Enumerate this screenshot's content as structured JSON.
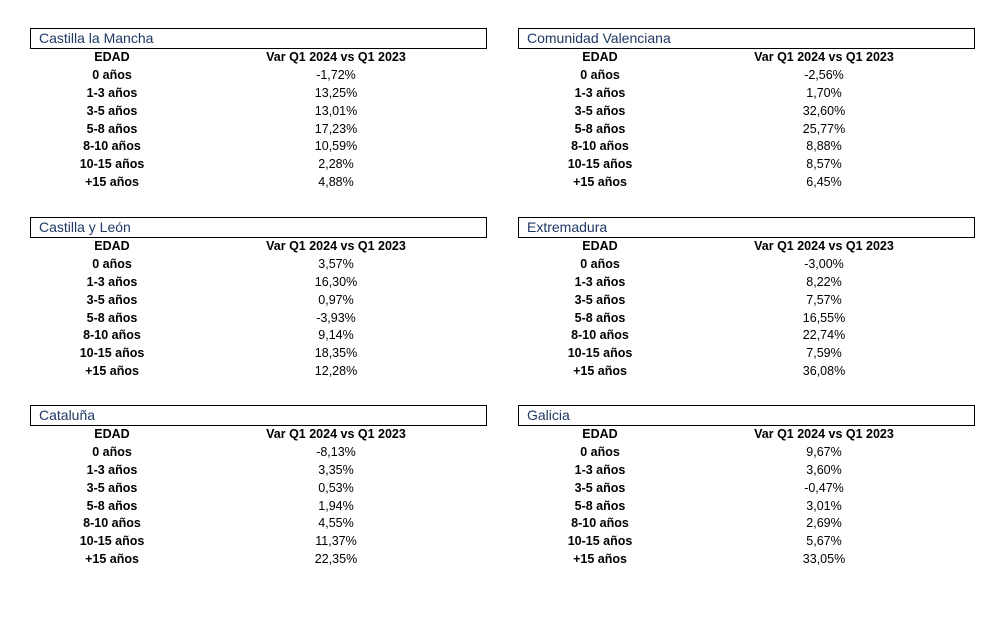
{
  "tables": [
    {
      "region": "Castilla la Mancha",
      "col_age": "EDAD",
      "col_var": "Var Q1 2024 vs Q1 2023",
      "rows": [
        {
          "age": "0 años",
          "value": "-1,72%"
        },
        {
          "age": "1-3 años",
          "value": "13,25%"
        },
        {
          "age": "3-5 años",
          "value": "13,01%"
        },
        {
          "age": "5-8 años",
          "value": "17,23%"
        },
        {
          "age": "8-10 años",
          "value": "10,59%"
        },
        {
          "age": "10-15 años",
          "value": "2,28%"
        },
        {
          "age": "+15 años",
          "value": "4,88%"
        }
      ]
    },
    {
      "region": "Comunidad Valenciana",
      "col_age": "EDAD",
      "col_var": "Var Q1 2024 vs Q1 2023",
      "rows": [
        {
          "age": "0 años",
          "value": "-2,56%"
        },
        {
          "age": "1-3 años",
          "value": "1,70%"
        },
        {
          "age": "3-5 años",
          "value": "32,60%"
        },
        {
          "age": "5-8 años",
          "value": "25,77%"
        },
        {
          "age": "8-10 años",
          "value": "8,88%"
        },
        {
          "age": "10-15 años",
          "value": "8,57%"
        },
        {
          "age": "+15 años",
          "value": "6,45%"
        }
      ]
    },
    {
      "region": "Castilla y León",
      "col_age": "EDAD",
      "col_var": "Var Q1 2024 vs Q1 2023",
      "rows": [
        {
          "age": "0 años",
          "value": "3,57%"
        },
        {
          "age": "1-3 años",
          "value": "16,30%"
        },
        {
          "age": "3-5 años",
          "value": "0,97%"
        },
        {
          "age": "5-8 años",
          "value": "-3,93%"
        },
        {
          "age": "8-10 años",
          "value": "9,14%"
        },
        {
          "age": "10-15 años",
          "value": "18,35%"
        },
        {
          "age": "+15 años",
          "value": "12,28%"
        }
      ]
    },
    {
      "region": "Extremadura",
      "col_age": "EDAD",
      "col_var": "Var Q1 2024 vs Q1 2023",
      "rows": [
        {
          "age": "0 años",
          "value": "-3,00%"
        },
        {
          "age": "1-3 años",
          "value": "8,22%"
        },
        {
          "age": "3-5 años",
          "value": "7,57%"
        },
        {
          "age": "5-8 años",
          "value": "16,55%"
        },
        {
          "age": "8-10 años",
          "value": "22,74%"
        },
        {
          "age": "10-15 años",
          "value": "7,59%"
        },
        {
          "age": "+15 años",
          "value": "36,08%"
        }
      ]
    },
    {
      "region": "Cataluña",
      "col_age": "EDAD",
      "col_var": "Var Q1 2024 vs Q1 2023",
      "rows": [
        {
          "age": "0 años",
          "value": "-8,13%"
        },
        {
          "age": "1-3 años",
          "value": "3,35%"
        },
        {
          "age": "3-5 años",
          "value": "0,53%"
        },
        {
          "age": "5-8 años",
          "value": "1,94%"
        },
        {
          "age": "8-10 años",
          "value": "4,55%"
        },
        {
          "age": "10-15 años",
          "value": "11,37%"
        },
        {
          "age": "+15 años",
          "value": "22,35%"
        }
      ]
    },
    {
      "region": "Galicia",
      "col_age": "EDAD",
      "col_var": "Var Q1 2024 vs Q1 2023",
      "rows": [
        {
          "age": "0 años",
          "value": "9,67%"
        },
        {
          "age": "1-3 años",
          "value": "3,60%"
        },
        {
          "age": "3-5 años",
          "value": "-0,47%"
        },
        {
          "age": "5-8 años",
          "value": "3,01%"
        },
        {
          "age": "8-10 años",
          "value": "2,69%"
        },
        {
          "age": "10-15 años",
          "value": "5,67%"
        },
        {
          "age": "+15 años",
          "value": "33,05%"
        }
      ]
    }
  ],
  "colors": {
    "region_title": "#1f3864",
    "border": "#000000",
    "text": "#000000"
  }
}
